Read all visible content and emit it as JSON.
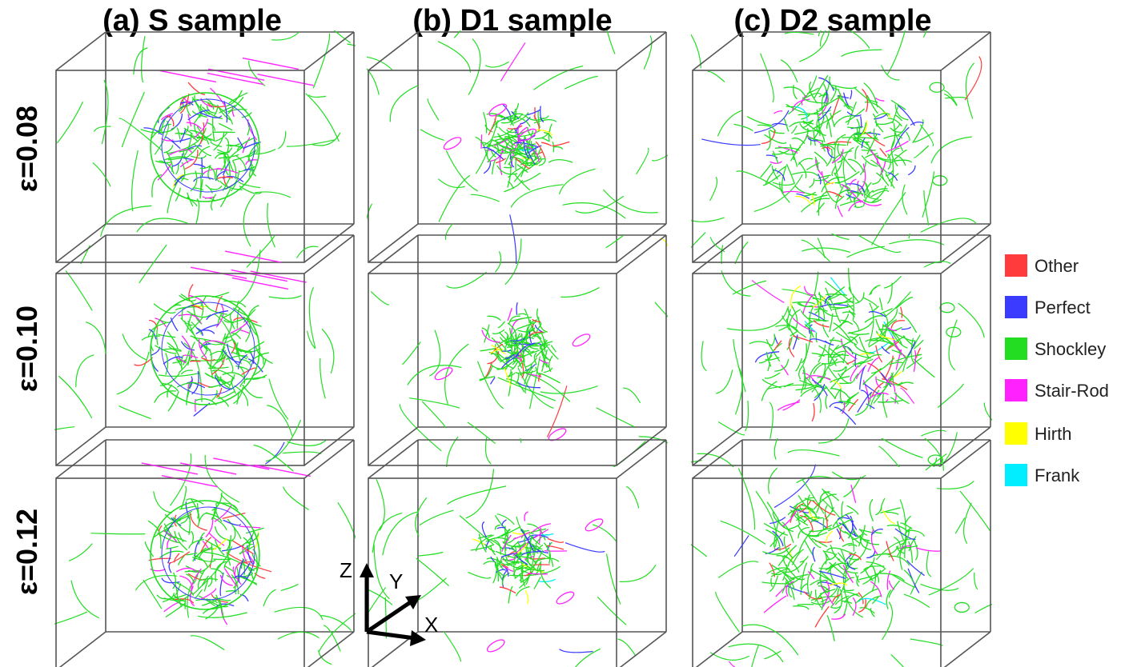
{
  "columns": [
    {
      "label": "(a) S sample",
      "kind": "sphere"
    },
    {
      "label": "(b) D1 sample",
      "kind": "small"
    },
    {
      "label": "(c) D2 sample",
      "kind": "large"
    }
  ],
  "rows": [
    {
      "label": "ε=0.08"
    },
    {
      "label": "ε=0.10"
    },
    {
      "label": "ε=0.12"
    }
  ],
  "legend": [
    {
      "label": "Other",
      "color": "#ff3b3b"
    },
    {
      "label": "Perfect",
      "color": "#3b3bff"
    },
    {
      "label": "Shockley",
      "color": "#22dd22"
    },
    {
      "label": "Stair-Rod",
      "color": "#ff22ff"
    },
    {
      "label": "Hirth",
      "color": "#ffff00"
    },
    {
      "label": "Frank",
      "color": "#00eeff"
    }
  ],
  "axes": {
    "z": "Z",
    "y": "Y",
    "x": "X"
  }
}
